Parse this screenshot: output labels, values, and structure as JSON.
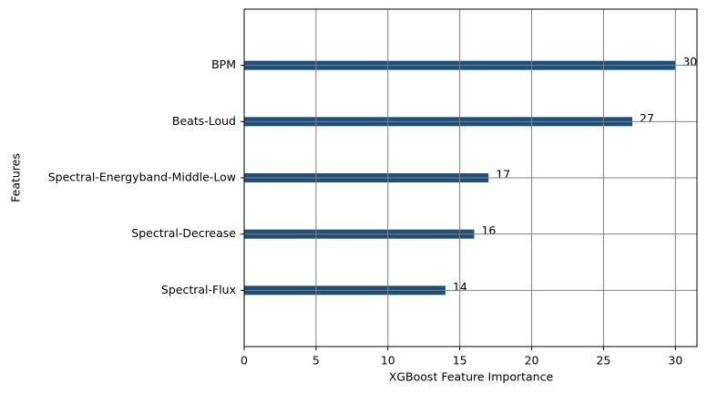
{
  "chart_data": {
    "type": "barh",
    "xlabel": "XGBoost Feature Importance",
    "ylabel": "Features",
    "categories": [
      "BPM",
      "Beats-Loud",
      "Spectral-Energyband-Middle-Low",
      "Spectral-Decrease",
      "Spectral-Flux"
    ],
    "values": [
      30,
      27,
      17,
      16,
      14
    ],
    "color": "#1f4e79",
    "xlim": [
      0,
      31.5
    ],
    "xticks": [
      0,
      5,
      10,
      15,
      20,
      25,
      30
    ],
    "grid": true
  }
}
